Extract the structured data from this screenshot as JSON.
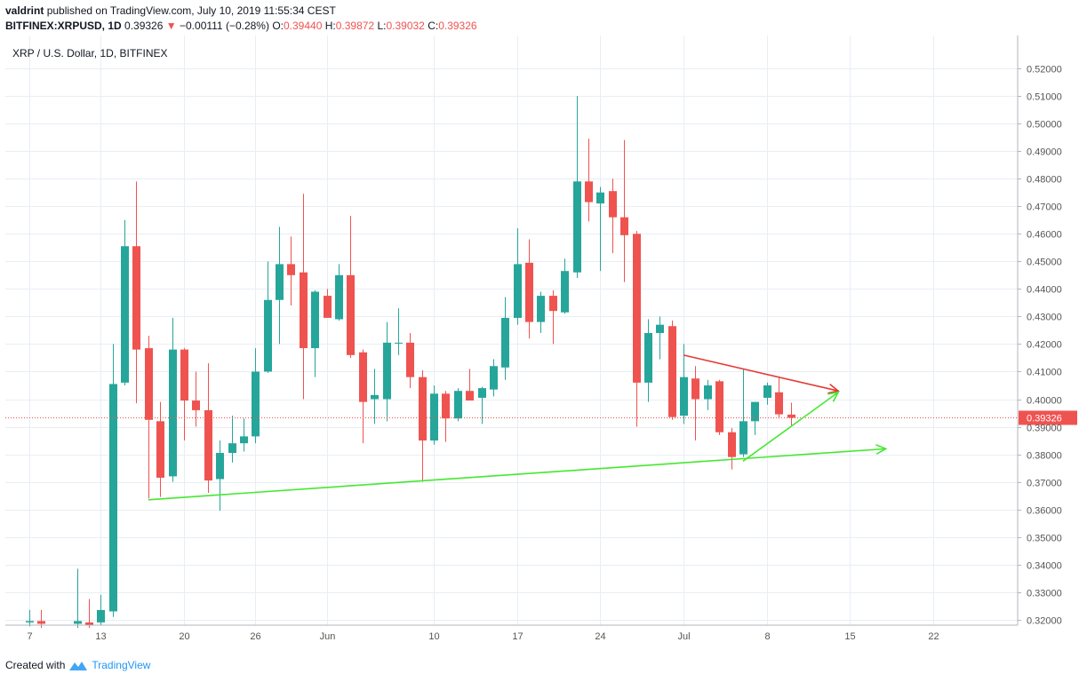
{
  "header": {
    "publisher": "valdrint",
    "published_text": "published on TradingView.com, July 10, 2019 11:55:34 CEST",
    "symbol": "BITFINEX:XRPUSD, 1D",
    "last": "0.39326",
    "change_arrow": "▼",
    "change": "−0.00111 (−0.28%)",
    "o_label": "O:",
    "o_value": "0.39440",
    "h_label": "H:",
    "h_value": "0.39872",
    "l_label": "L:",
    "l_value": "0.39032",
    "c_label": "C:",
    "c_value": "0.39326"
  },
  "footer": {
    "created_with": "Created with",
    "brand": "TradingView",
    "logo_icon": "tradingview-logo-icon"
  },
  "colors": {
    "up": "#26a69a",
    "down": "#ef5350",
    "grid": "#e8eef5",
    "current_price": "#ef5350",
    "resistance_line": "#e53935",
    "support_line": "#44e830"
  },
  "chart_data": {
    "type": "candlestick",
    "title": "XRP / U.S. Dollar, 1D, BITFINEX",
    "ylim": [
      0.318,
      0.5255
    ],
    "y_ticks": [
      "0.32000",
      "0.33000",
      "0.34000",
      "0.35000",
      "0.36000",
      "0.37000",
      "0.38000",
      "0.39000",
      "0.40000",
      "0.41000",
      "0.42000",
      "0.43000",
      "0.44000",
      "0.45000",
      "0.46000",
      "0.47000",
      "0.48000",
      "0.49000",
      "0.50000",
      "0.51000",
      "0.52000"
    ],
    "x_ticks": [
      {
        "date": "2019-05-07",
        "label": "7"
      },
      {
        "date": "2019-05-13",
        "label": "13"
      },
      {
        "date": "2019-05-20",
        "label": "20"
      },
      {
        "date": "2019-05-26",
        "label": "26"
      },
      {
        "date": "2019-06-01",
        "label": "Jun"
      },
      {
        "date": "2019-06-10",
        "label": "10"
      },
      {
        "date": "2019-06-17",
        "label": "17"
      },
      {
        "date": "2019-06-24",
        "label": "24"
      },
      {
        "date": "2019-07-01",
        "label": "Jul"
      },
      {
        "date": "2019-07-08",
        "label": "8"
      },
      {
        "date": "2019-07-15",
        "label": "15"
      },
      {
        "date": "2019-07-22",
        "label": "22"
      }
    ],
    "x_range": [
      "2019-05-07",
      "2019-07-27"
    ],
    "current_price": "0.39326",
    "candles": [
      {
        "date": "2019-05-07",
        "o": 0.319,
        "h": 0.3235,
        "l": 0.3175,
        "c": 0.3195
      },
      {
        "date": "2019-05-08",
        "o": 0.3195,
        "h": 0.3235,
        "l": 0.317,
        "c": 0.3185
      },
      {
        "date": "2019-05-11",
        "o": 0.3185,
        "h": 0.3385,
        "l": 0.317,
        "c": 0.3195
      },
      {
        "date": "2019-05-12",
        "o": 0.319,
        "h": 0.3275,
        "l": 0.317,
        "c": 0.318
      },
      {
        "date": "2019-05-13",
        "o": 0.319,
        "h": 0.329,
        "l": 0.318,
        "c": 0.3235
      },
      {
        "date": "2019-05-14",
        "o": 0.323,
        "h": 0.42,
        "l": 0.321,
        "c": 0.4055
      },
      {
        "date": "2019-05-15",
        "o": 0.406,
        "h": 0.465,
        "l": 0.405,
        "c": 0.4555
      },
      {
        "date": "2019-05-16",
        "o": 0.4555,
        "h": 0.479,
        "l": 0.3985,
        "c": 0.418
      },
      {
        "date": "2019-05-17",
        "o": 0.4185,
        "h": 0.423,
        "l": 0.364,
        "c": 0.3925
      },
      {
        "date": "2019-05-18",
        "o": 0.392,
        "h": 0.399,
        "l": 0.3645,
        "c": 0.3715
      },
      {
        "date": "2019-05-19",
        "o": 0.372,
        "h": 0.4295,
        "l": 0.37,
        "c": 0.418
      },
      {
        "date": "2019-05-20",
        "o": 0.418,
        "h": 0.4185,
        "l": 0.385,
        "c": 0.3995
      },
      {
        "date": "2019-05-21",
        "o": 0.3995,
        "h": 0.41,
        "l": 0.39,
        "c": 0.396
      },
      {
        "date": "2019-05-22",
        "o": 0.396,
        "h": 0.413,
        "l": 0.366,
        "c": 0.3705
      },
      {
        "date": "2019-05-23",
        "o": 0.371,
        "h": 0.385,
        "l": 0.3595,
        "c": 0.3805
      },
      {
        "date": "2019-05-24",
        "o": 0.3805,
        "h": 0.394,
        "l": 0.377,
        "c": 0.384
      },
      {
        "date": "2019-05-25",
        "o": 0.384,
        "h": 0.393,
        "l": 0.381,
        "c": 0.3865
      },
      {
        "date": "2019-05-26",
        "o": 0.3865,
        "h": 0.4185,
        "l": 0.384,
        "c": 0.41
      },
      {
        "date": "2019-05-27",
        "o": 0.41,
        "h": 0.45,
        "l": 0.4095,
        "c": 0.436
      },
      {
        "date": "2019-05-28",
        "o": 0.436,
        "h": 0.4625,
        "l": 0.42,
        "c": 0.449
      },
      {
        "date": "2019-05-29",
        "o": 0.449,
        "h": 0.459,
        "l": 0.434,
        "c": 0.445
      },
      {
        "date": "2019-05-30",
        "o": 0.446,
        "h": 0.4745,
        "l": 0.4,
        "c": 0.4185
      },
      {
        "date": "2019-05-31",
        "o": 0.4185,
        "h": 0.4395,
        "l": 0.408,
        "c": 0.439
      },
      {
        "date": "2019-06-01",
        "o": 0.4375,
        "h": 0.44,
        "l": 0.43,
        "c": 0.4295
      },
      {
        "date": "2019-06-02",
        "o": 0.429,
        "h": 0.449,
        "l": 0.4285,
        "c": 0.445
      },
      {
        "date": "2019-06-03",
        "o": 0.445,
        "h": 0.4665,
        "l": 0.415,
        "c": 0.416
      },
      {
        "date": "2019-06-04",
        "o": 0.417,
        "h": 0.418,
        "l": 0.384,
        "c": 0.399
      },
      {
        "date": "2019-06-05",
        "o": 0.4,
        "h": 0.411,
        "l": 0.391,
        "c": 0.4015
      },
      {
        "date": "2019-06-06",
        "o": 0.4,
        "h": 0.428,
        "l": 0.392,
        "c": 0.4205
      },
      {
        "date": "2019-06-07",
        "o": 0.4205,
        "h": 0.433,
        "l": 0.416,
        "c": 0.4205
      },
      {
        "date": "2019-06-08",
        "o": 0.4205,
        "h": 0.424,
        "l": 0.404,
        "c": 0.408
      },
      {
        "date": "2019-06-09",
        "o": 0.408,
        "h": 0.4105,
        "l": 0.37,
        "c": 0.385
      },
      {
        "date": "2019-06-10",
        "o": 0.385,
        "h": 0.405,
        "l": 0.3835,
        "c": 0.402
      },
      {
        "date": "2019-06-11",
        "o": 0.402,
        "h": 0.403,
        "l": 0.3845,
        "c": 0.393
      },
      {
        "date": "2019-06-12",
        "o": 0.393,
        "h": 0.404,
        "l": 0.392,
        "c": 0.403
      },
      {
        "date": "2019-06-13",
        "o": 0.403,
        "h": 0.411,
        "l": 0.3995,
        "c": 0.3995
      },
      {
        "date": "2019-06-14",
        "o": 0.4005,
        "h": 0.4045,
        "l": 0.391,
        "c": 0.404
      },
      {
        "date": "2019-06-15",
        "o": 0.4035,
        "h": 0.4145,
        "l": 0.401,
        "c": 0.412
      },
      {
        "date": "2019-06-16",
        "o": 0.4115,
        "h": 0.437,
        "l": 0.407,
        "c": 0.4295
      },
      {
        "date": "2019-06-17",
        "o": 0.4295,
        "h": 0.462,
        "l": 0.427,
        "c": 0.449
      },
      {
        "date": "2019-06-18",
        "o": 0.4495,
        "h": 0.458,
        "l": 0.422,
        "c": 0.428
      },
      {
        "date": "2019-06-19",
        "o": 0.428,
        "h": 0.439,
        "l": 0.424,
        "c": 0.4375
      },
      {
        "date": "2019-06-20",
        "o": 0.4375,
        "h": 0.4395,
        "l": 0.42,
        "c": 0.432
      },
      {
        "date": "2019-06-21",
        "o": 0.4315,
        "h": 0.451,
        "l": 0.431,
        "c": 0.4465
      },
      {
        "date": "2019-06-22",
        "o": 0.446,
        "h": 0.51,
        "l": 0.444,
        "c": 0.479
      },
      {
        "date": "2019-06-23",
        "o": 0.479,
        "h": 0.4945,
        "l": 0.4645,
        "c": 0.4715
      },
      {
        "date": "2019-06-24",
        "o": 0.471,
        "h": 0.477,
        "l": 0.4465,
        "c": 0.475
      },
      {
        "date": "2019-06-25",
        "o": 0.4755,
        "h": 0.48,
        "l": 0.453,
        "c": 0.466
      },
      {
        "date": "2019-06-26",
        "o": 0.466,
        "h": 0.494,
        "l": 0.4425,
        "c": 0.4595
      },
      {
        "date": "2019-06-27",
        "o": 0.46,
        "h": 0.461,
        "l": 0.39,
        "c": 0.406
      },
      {
        "date": "2019-06-28",
        "o": 0.406,
        "h": 0.429,
        "l": 0.399,
        "c": 0.424
      },
      {
        "date": "2019-06-29",
        "o": 0.424,
        "h": 0.43,
        "l": 0.4145,
        "c": 0.427
      },
      {
        "date": "2019-06-30",
        "o": 0.4265,
        "h": 0.4285,
        "l": 0.3925,
        "c": 0.3935
      },
      {
        "date": "2019-07-01",
        "o": 0.394,
        "h": 0.42,
        "l": 0.391,
        "c": 0.408
      },
      {
        "date": "2019-07-02",
        "o": 0.4075,
        "h": 0.412,
        "l": 0.385,
        "c": 0.4
      },
      {
        "date": "2019-07-03",
        "o": 0.4,
        "h": 0.407,
        "l": 0.396,
        "c": 0.405
      },
      {
        "date": "2019-07-04",
        "o": 0.4065,
        "h": 0.407,
        "l": 0.387,
        "c": 0.388
      },
      {
        "date": "2019-07-05",
        "o": 0.388,
        "h": 0.3895,
        "l": 0.3745,
        "c": 0.379
      },
      {
        "date": "2019-07-06",
        "o": 0.38,
        "h": 0.411,
        "l": 0.379,
        "c": 0.392
      },
      {
        "date": "2019-07-07",
        "o": 0.392,
        "h": 0.399,
        "l": 0.387,
        "c": 0.399
      },
      {
        "date": "2019-07-08",
        "o": 0.4005,
        "h": 0.406,
        "l": 0.398,
        "c": 0.405
      },
      {
        "date": "2019-07-09",
        "o": 0.4025,
        "h": 0.408,
        "l": 0.393,
        "c": 0.3945
      },
      {
        "date": "2019-07-10",
        "o": 0.3944,
        "h": 0.3987,
        "l": 0.3903,
        "c": 0.39326
      }
    ],
    "trendlines": [
      {
        "name": "resistance",
        "color": "resistance_line",
        "x1": "2019-07-01",
        "y1": 0.416,
        "x2": "2019-07-14",
        "y2": 0.403,
        "arrow": true
      },
      {
        "name": "support-short",
        "color": "support_line",
        "x1": "2019-07-06",
        "y1": 0.3775,
        "x2": "2019-07-14",
        "y2": 0.4025,
        "arrow": true
      },
      {
        "name": "support-long",
        "color": "support_line",
        "x1": "2019-05-17",
        "y1": 0.3635,
        "x2": "2019-07-18",
        "y2": 0.382,
        "arrow": true
      }
    ]
  }
}
